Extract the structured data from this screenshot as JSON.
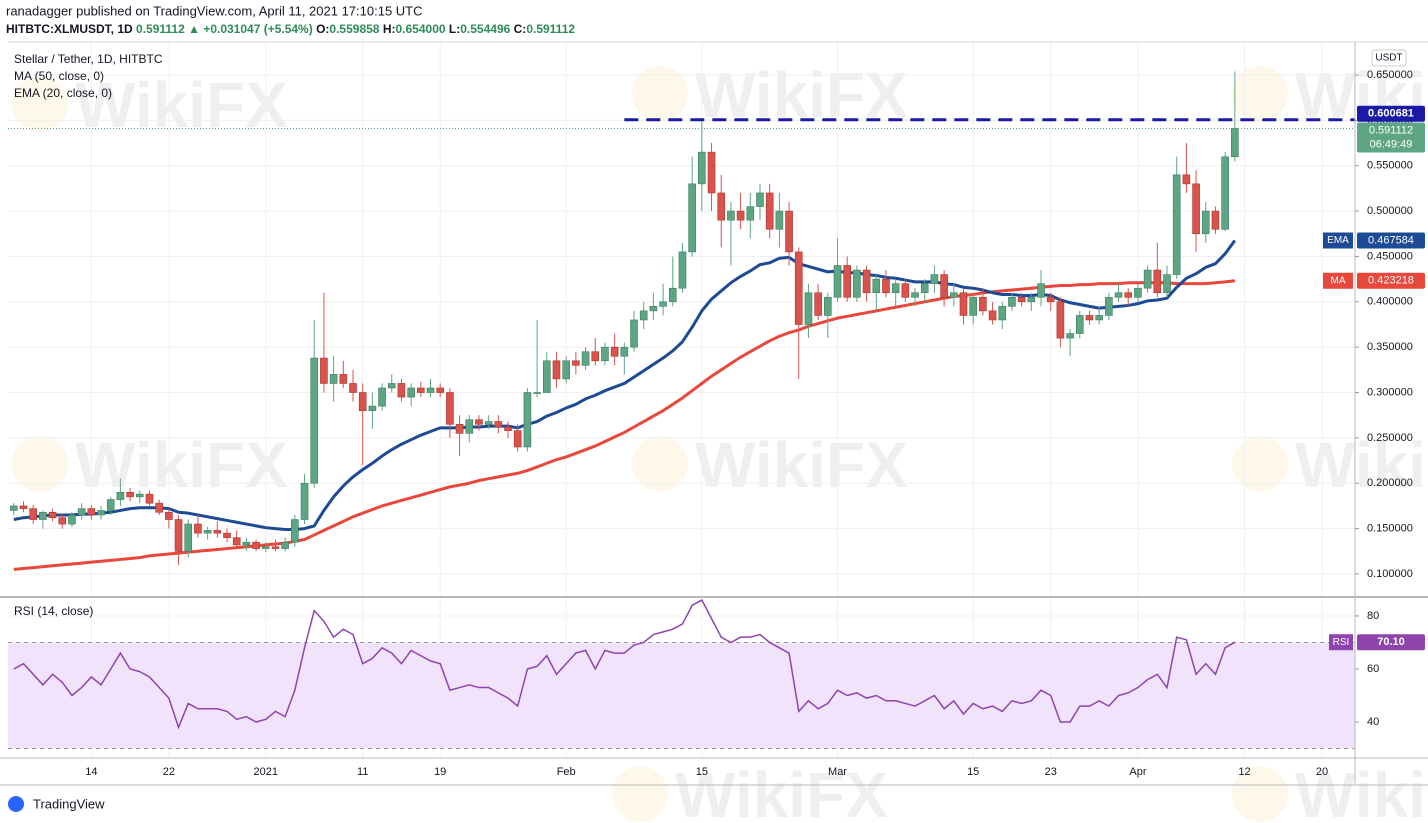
{
  "header": {
    "published": "ranadagger published on TradingView.com, April 11, 2021 17:10:15 UTC",
    "symbol": "HITBTC:XLMUSDT, 1D",
    "last": "0.591112",
    "change": "▲ +0.031047 (+5.54%)",
    "ohlc": [
      {
        "k": "O:",
        "v": "0.559858"
      },
      {
        "k": "H:",
        "v": "0.654000"
      },
      {
        "k": "L:",
        "v": "0.554496"
      },
      {
        "k": "C:",
        "v": "0.591112"
      }
    ]
  },
  "watermark": "WikiFX",
  "footer": {
    "brand": "TradingView"
  },
  "chart_data": {
    "type": "candlestick",
    "title": "Stellar / Tether, 1D, HITBTC",
    "currency": "USDT",
    "x": [
      0,
      1,
      2,
      3,
      4,
      5,
      6,
      7,
      8,
      9,
      10,
      11,
      12,
      13,
      14,
      15,
      16,
      17,
      18,
      19,
      20,
      21,
      22,
      23,
      24,
      25,
      26,
      27,
      28,
      29,
      30,
      31,
      32,
      33,
      34,
      35,
      36,
      37,
      38,
      39,
      40,
      41,
      42,
      43,
      44,
      45,
      46,
      47,
      48,
      49,
      50,
      51,
      52,
      53,
      54,
      55,
      56,
      57,
      58,
      59,
      60,
      61,
      62,
      63,
      64,
      65,
      66,
      67,
      68,
      69,
      70,
      71,
      72,
      73,
      74,
      75,
      76,
      77,
      78,
      79,
      80,
      81,
      82,
      83,
      84,
      85,
      86,
      87,
      88,
      89,
      90,
      91,
      92,
      93,
      94,
      95,
      96,
      97,
      98,
      99,
      100,
      101,
      102,
      103,
      104,
      105,
      106,
      107,
      108,
      109,
      110,
      111,
      112,
      113,
      114,
      115,
      116,
      117,
      118,
      119,
      120,
      121,
      122,
      123,
      124,
      125,
      126
    ],
    "xlim": [
      -0.6,
      138.4
    ],
    "xticks": [
      {
        "value": 8,
        "label": "14"
      },
      {
        "value": 16,
        "label": "22"
      },
      {
        "value": 26,
        "label": "2021"
      },
      {
        "value": 36,
        "label": "11"
      },
      {
        "value": 44,
        "label": "19"
      },
      {
        "value": 57,
        "label": "Feb"
      },
      {
        "value": 71,
        "label": "15"
      },
      {
        "value": 85,
        "label": "Mar"
      },
      {
        "value": 99,
        "label": "15"
      },
      {
        "value": 107,
        "label": "23"
      },
      {
        "value": 116,
        "label": "Apr"
      },
      {
        "value": 127,
        "label": "12"
      },
      {
        "value": 135,
        "label": "20"
      }
    ],
    "ohlc": [
      [
        0.17,
        0.178,
        0.165,
        0.175
      ],
      [
        0.175,
        0.18,
        0.168,
        0.172
      ],
      [
        0.172,
        0.176,
        0.155,
        0.16
      ],
      [
        0.16,
        0.17,
        0.15,
        0.168
      ],
      [
        0.168,
        0.172,
        0.158,
        0.162
      ],
      [
        0.162,
        0.166,
        0.15,
        0.155
      ],
      [
        0.155,
        0.168,
        0.152,
        0.165
      ],
      [
        0.165,
        0.178,
        0.16,
        0.172
      ],
      [
        0.172,
        0.176,
        0.16,
        0.165
      ],
      [
        0.165,
        0.175,
        0.16,
        0.17
      ],
      [
        0.17,
        0.185,
        0.165,
        0.182
      ],
      [
        0.182,
        0.205,
        0.175,
        0.19
      ],
      [
        0.19,
        0.195,
        0.18,
        0.185
      ],
      [
        0.185,
        0.192,
        0.178,
        0.188
      ],
      [
        0.188,
        0.192,
        0.175,
        0.178
      ],
      [
        0.178,
        0.182,
        0.165,
        0.168
      ],
      [
        0.168,
        0.172,
        0.15,
        0.16
      ],
      [
        0.16,
        0.165,
        0.11,
        0.125
      ],
      [
        0.125,
        0.16,
        0.118,
        0.155
      ],
      [
        0.155,
        0.165,
        0.14,
        0.145
      ],
      [
        0.145,
        0.152,
        0.138,
        0.148
      ],
      [
        0.148,
        0.158,
        0.14,
        0.145
      ],
      [
        0.145,
        0.15,
        0.135,
        0.14
      ],
      [
        0.14,
        0.148,
        0.128,
        0.132
      ],
      [
        0.132,
        0.14,
        0.125,
        0.135
      ],
      [
        0.135,
        0.138,
        0.125,
        0.128
      ],
      [
        0.128,
        0.135,
        0.124,
        0.13
      ],
      [
        0.13,
        0.138,
        0.125,
        0.128
      ],
      [
        0.128,
        0.14,
        0.125,
        0.135
      ],
      [
        0.135,
        0.165,
        0.13,
        0.16
      ],
      [
        0.16,
        0.21,
        0.155,
        0.2
      ],
      [
        0.2,
        0.38,
        0.195,
        0.338
      ],
      [
        0.338,
        0.41,
        0.3,
        0.31
      ],
      [
        0.31,
        0.34,
        0.29,
        0.32
      ],
      [
        0.32,
        0.335,
        0.305,
        0.31
      ],
      [
        0.31,
        0.325,
        0.29,
        0.3
      ],
      [
        0.3,
        0.31,
        0.22,
        0.28
      ],
      [
        0.28,
        0.3,
        0.26,
        0.285
      ],
      [
        0.285,
        0.31,
        0.28,
        0.305
      ],
      [
        0.305,
        0.32,
        0.3,
        0.31
      ],
      [
        0.31,
        0.315,
        0.29,
        0.295
      ],
      [
        0.295,
        0.31,
        0.285,
        0.305
      ],
      [
        0.305,
        0.312,
        0.295,
        0.3
      ],
      [
        0.3,
        0.315,
        0.295,
        0.305
      ],
      [
        0.305,
        0.31,
        0.295,
        0.3
      ],
      [
        0.3,
        0.305,
        0.25,
        0.265
      ],
      [
        0.265,
        0.275,
        0.23,
        0.255
      ],
      [
        0.255,
        0.275,
        0.245,
        0.27
      ],
      [
        0.27,
        0.275,
        0.258,
        0.265
      ],
      [
        0.265,
        0.275,
        0.26,
        0.268
      ],
      [
        0.268,
        0.275,
        0.255,
        0.262
      ],
      [
        0.262,
        0.268,
        0.25,
        0.258
      ],
      [
        0.258,
        0.265,
        0.235,
        0.24
      ],
      [
        0.24,
        0.305,
        0.235,
        0.3
      ],
      [
        0.3,
        0.38,
        0.295,
        0.3
      ],
      [
        0.3,
        0.345,
        0.3,
        0.335
      ],
      [
        0.335,
        0.345,
        0.305,
        0.315
      ],
      [
        0.315,
        0.34,
        0.31,
        0.335
      ],
      [
        0.335,
        0.345,
        0.32,
        0.33
      ],
      [
        0.33,
        0.35,
        0.325,
        0.345
      ],
      [
        0.345,
        0.36,
        0.33,
        0.335
      ],
      [
        0.335,
        0.355,
        0.33,
        0.35
      ],
      [
        0.35,
        0.365,
        0.33,
        0.34
      ],
      [
        0.34,
        0.355,
        0.32,
        0.35
      ],
      [
        0.35,
        0.39,
        0.345,
        0.38
      ],
      [
        0.38,
        0.4,
        0.37,
        0.39
      ],
      [
        0.39,
        0.41,
        0.38,
        0.395
      ],
      [
        0.395,
        0.42,
        0.385,
        0.4
      ],
      [
        0.4,
        0.45,
        0.395,
        0.415
      ],
      [
        0.415,
        0.465,
        0.41,
        0.455
      ],
      [
        0.455,
        0.56,
        0.45,
        0.53
      ],
      [
        0.53,
        0.6,
        0.5,
        0.565
      ],
      [
        0.565,
        0.575,
        0.5,
        0.52
      ],
      [
        0.52,
        0.54,
        0.46,
        0.49
      ],
      [
        0.49,
        0.51,
        0.44,
        0.5
      ],
      [
        0.5,
        0.52,
        0.48,
        0.49
      ],
      [
        0.49,
        0.52,
        0.47,
        0.505
      ],
      [
        0.505,
        0.53,
        0.49,
        0.52
      ],
      [
        0.52,
        0.53,
        0.47,
        0.48
      ],
      [
        0.48,
        0.52,
        0.46,
        0.5
      ],
      [
        0.5,
        0.51,
        0.44,
        0.455
      ],
      [
        0.455,
        0.46,
        0.315,
        0.375
      ],
      [
        0.375,
        0.42,
        0.36,
        0.41
      ],
      [
        0.41,
        0.42,
        0.38,
        0.385
      ],
      [
        0.385,
        0.41,
        0.36,
        0.405
      ],
      [
        0.405,
        0.47,
        0.4,
        0.44
      ],
      [
        0.44,
        0.45,
        0.4,
        0.405
      ],
      [
        0.405,
        0.44,
        0.4,
        0.435
      ],
      [
        0.435,
        0.44,
        0.4,
        0.41
      ],
      [
        0.41,
        0.43,
        0.39,
        0.425
      ],
      [
        0.425,
        0.435,
        0.405,
        0.41
      ],
      [
        0.41,
        0.425,
        0.395,
        0.42
      ],
      [
        0.42,
        0.425,
        0.4,
        0.405
      ],
      [
        0.405,
        0.415,
        0.395,
        0.41
      ],
      [
        0.41,
        0.425,
        0.4,
        0.42
      ],
      [
        0.42,
        0.44,
        0.41,
        0.43
      ],
      [
        0.43,
        0.435,
        0.395,
        0.405
      ],
      [
        0.405,
        0.42,
        0.395,
        0.41
      ],
      [
        0.41,
        0.415,
        0.375,
        0.385
      ],
      [
        0.385,
        0.41,
        0.375,
        0.405
      ],
      [
        0.405,
        0.415,
        0.385,
        0.39
      ],
      [
        0.39,
        0.4,
        0.375,
        0.38
      ],
      [
        0.38,
        0.4,
        0.37,
        0.395
      ],
      [
        0.395,
        0.41,
        0.39,
        0.405
      ],
      [
        0.405,
        0.41,
        0.395,
        0.4
      ],
      [
        0.4,
        0.41,
        0.39,
        0.405
      ],
      [
        0.405,
        0.435,
        0.395,
        0.42
      ],
      [
        0.405,
        0.41,
        0.39,
        0.4
      ],
      [
        0.4,
        0.405,
        0.35,
        0.36
      ],
      [
        0.36,
        0.37,
        0.34,
        0.365
      ],
      [
        0.365,
        0.39,
        0.36,
        0.385
      ],
      [
        0.385,
        0.39,
        0.375,
        0.38
      ],
      [
        0.38,
        0.395,
        0.375,
        0.385
      ],
      [
        0.385,
        0.41,
        0.38,
        0.405
      ],
      [
        0.405,
        0.42,
        0.4,
        0.41
      ],
      [
        0.41,
        0.415,
        0.395,
        0.405
      ],
      [
        0.405,
        0.42,
        0.4,
        0.415
      ],
      [
        0.415,
        0.44,
        0.41,
        0.435
      ],
      [
        0.435,
        0.465,
        0.405,
        0.41
      ],
      [
        0.41,
        0.44,
        0.405,
        0.43
      ],
      [
        0.43,
        0.56,
        0.425,
        0.54
      ],
      [
        0.54,
        0.575,
        0.52,
        0.53
      ],
      [
        0.53,
        0.545,
        0.455,
        0.475
      ],
      [
        0.475,
        0.51,
        0.465,
        0.5
      ],
      [
        0.5,
        0.505,
        0.475,
        0.48
      ],
      [
        0.48,
        0.565,
        0.478,
        0.559858
      ],
      [
        0.559858,
        0.654,
        0.554496,
        0.591112
      ]
    ],
    "up_color": "#5ea584",
    "down_color": "#d9534c",
    "ylim": [
      0.0757,
      0.6864
    ],
    "yticks": [
      {
        "value": 0.1,
        "label": "0.100000"
      },
      {
        "value": 0.15,
        "label": "0.150000"
      },
      {
        "value": 0.2,
        "label": "0.200000"
      },
      {
        "value": 0.25,
        "label": "0.250000"
      },
      {
        "value": 0.3,
        "label": "0.300000"
      },
      {
        "value": 0.35,
        "label": "0.350000"
      },
      {
        "value": 0.4,
        "label": "0.400000"
      },
      {
        "value": 0.45,
        "label": "0.450000"
      },
      {
        "value": 0.5,
        "label": "0.500000"
      },
      {
        "value": 0.55,
        "label": "0.550000"
      },
      {
        "value": 0.6,
        "label": "0.600000"
      },
      {
        "value": 0.65,
        "label": "0.650000"
      }
    ],
    "grid": true,
    "indicators": [
      {
        "name": "MA (50, close, 0)",
        "tag": "MA",
        "color": "#e8473b",
        "values": [
          0.105,
          0.106,
          0.107,
          0.108,
          0.109,
          0.11,
          0.111,
          0.112,
          0.113,
          0.114,
          0.115,
          0.116,
          0.117,
          0.118,
          0.12,
          0.121,
          0.122,
          0.123,
          0.124,
          0.125,
          0.126,
          0.127,
          0.128,
          0.129,
          0.13,
          0.131,
          0.132,
          0.133,
          0.134,
          0.136,
          0.138,
          0.143,
          0.148,
          0.153,
          0.158,
          0.163,
          0.167,
          0.171,
          0.175,
          0.178,
          0.181,
          0.184,
          0.187,
          0.19,
          0.193,
          0.196,
          0.198,
          0.2,
          0.203,
          0.205,
          0.207,
          0.209,
          0.211,
          0.214,
          0.218,
          0.222,
          0.226,
          0.229,
          0.233,
          0.237,
          0.241,
          0.246,
          0.251,
          0.256,
          0.262,
          0.268,
          0.274,
          0.28,
          0.287,
          0.294,
          0.302,
          0.31,
          0.318,
          0.325,
          0.332,
          0.339,
          0.345,
          0.351,
          0.357,
          0.362,
          0.366,
          0.369,
          0.373,
          0.376,
          0.379,
          0.382,
          0.384,
          0.386,
          0.388,
          0.39,
          0.392,
          0.394,
          0.396,
          0.398,
          0.4,
          0.402,
          0.404,
          0.406,
          0.407,
          0.408,
          0.41,
          0.411,
          0.412,
          0.413,
          0.414,
          0.415,
          0.416,
          0.417,
          0.418,
          0.418,
          0.419,
          0.419,
          0.42,
          0.42,
          0.42,
          0.421,
          0.421,
          0.421,
          0.421,
          0.421,
          0.42,
          0.42,
          0.42,
          0.42,
          0.421,
          0.422,
          0.423218
        ]
      },
      {
        "name": "EMA (20, close, 0)",
        "tag": "EMA",
        "color": "#1c4a94",
        "values": [
          0.16,
          0.162,
          0.163,
          0.164,
          0.165,
          0.165,
          0.165,
          0.166,
          0.166,
          0.167,
          0.168,
          0.17,
          0.172,
          0.173,
          0.173,
          0.173,
          0.172,
          0.168,
          0.167,
          0.165,
          0.163,
          0.161,
          0.159,
          0.157,
          0.155,
          0.153,
          0.151,
          0.15,
          0.149,
          0.149,
          0.15,
          0.153,
          0.17,
          0.185,
          0.197,
          0.207,
          0.215,
          0.222,
          0.23,
          0.237,
          0.243,
          0.248,
          0.253,
          0.257,
          0.261,
          0.261,
          0.261,
          0.262,
          0.262,
          0.263,
          0.263,
          0.263,
          0.261,
          0.265,
          0.268,
          0.274,
          0.278,
          0.283,
          0.287,
          0.293,
          0.297,
          0.302,
          0.306,
          0.31,
          0.317,
          0.324,
          0.331,
          0.338,
          0.346,
          0.356,
          0.372,
          0.39,
          0.403,
          0.412,
          0.421,
          0.428,
          0.434,
          0.441,
          0.443,
          0.448,
          0.449,
          0.442,
          0.439,
          0.436,
          0.433,
          0.434,
          0.432,
          0.432,
          0.43,
          0.429,
          0.427,
          0.426,
          0.424,
          0.422,
          0.422,
          0.422,
          0.42,
          0.419,
          0.416,
          0.415,
          0.413,
          0.41,
          0.408,
          0.408,
          0.407,
          0.407,
          0.408,
          0.407,
          0.402,
          0.399,
          0.397,
          0.395,
          0.393,
          0.394,
          0.395,
          0.396,
          0.398,
          0.401,
          0.402,
          0.404,
          0.416,
          0.426,
          0.431,
          0.438,
          0.442,
          0.453,
          0.467584
        ]
      }
    ],
    "resistance": {
      "value": 0.600681,
      "from_x": 63,
      "color": "#1a1aa6"
    },
    "countdown": "06:49:49",
    "rsi": {
      "name": "RSI (14, close)",
      "tag": "RSI",
      "color": "#8e44ad",
      "last_label": "70.10",
      "ylim": [
        26.8,
        86.4
      ],
      "yticks": [
        40,
        60,
        80
      ],
      "band": [
        30,
        70
      ],
      "values": [
        60,
        62,
        58,
        54,
        58,
        55,
        50,
        53,
        57,
        54,
        60,
        66,
        60,
        59,
        57,
        53,
        49,
        38,
        47,
        45,
        45,
        45,
        44,
        41,
        42,
        40,
        41,
        44,
        42,
        52,
        68,
        82,
        78,
        72,
        75,
        73,
        62,
        64,
        68,
        66,
        62,
        67,
        65,
        63,
        62,
        52,
        53,
        54,
        53,
        53,
        51,
        49,
        46,
        60,
        61,
        65,
        58,
        62,
        66,
        67,
        60,
        67,
        66,
        66,
        69,
        70,
        73,
        74,
        75,
        77,
        84,
        86,
        79,
        72,
        70,
        72,
        72,
        73,
        70,
        68,
        66,
        44,
        48,
        45,
        47,
        52,
        50,
        51,
        49,
        50,
        48,
        48,
        47,
        46,
        48,
        50,
        45,
        48,
        43,
        47,
        45,
        46,
        44,
        48,
        47,
        48,
        52,
        50,
        40,
        40,
        46,
        46,
        48,
        46,
        50,
        51,
        53,
        56,
        58,
        53,
        72,
        71,
        58,
        62,
        58,
        68,
        70.1
      ]
    }
  }
}
